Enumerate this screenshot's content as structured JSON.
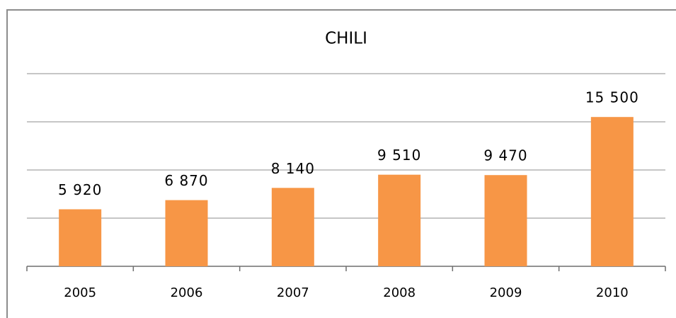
{
  "chart_data": {
    "type": "bar",
    "title": "CHILI",
    "categories": [
      "2005",
      "2006",
      "2007",
      "2008",
      "2009",
      "2010"
    ],
    "values": [
      5920,
      6870,
      8140,
      9510,
      9470,
      15500
    ],
    "value_labels": [
      "5 920",
      "6 870",
      "8 140",
      "9 510",
      "9 470",
      "15 500"
    ],
    "color": "#f79646",
    "ylim": [
      0,
      20000
    ],
    "yticks": [
      0,
      5000,
      10000,
      15000,
      20000
    ],
    "grid": true
  }
}
